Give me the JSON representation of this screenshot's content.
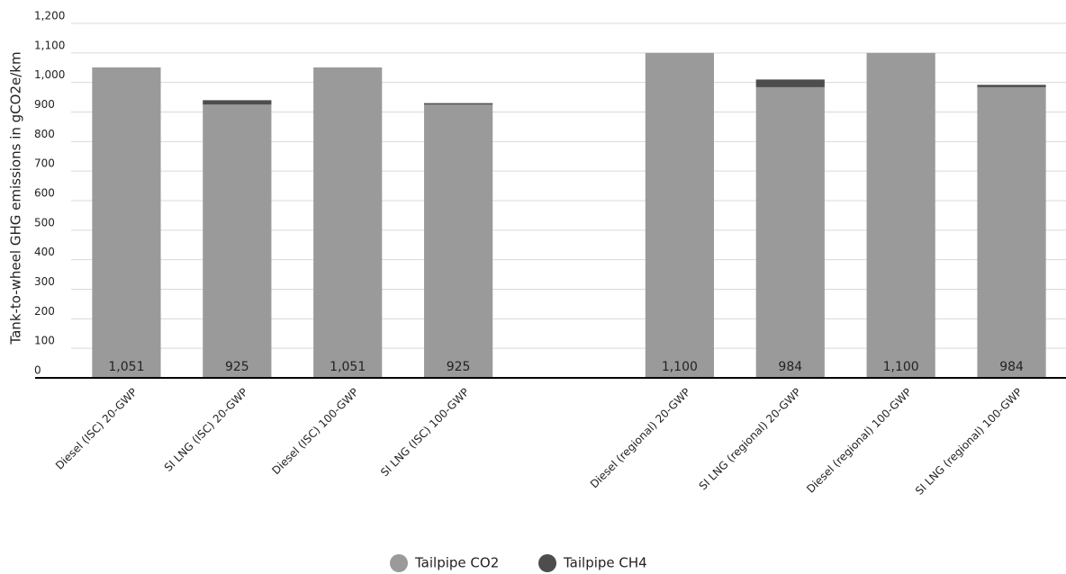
{
  "chart_data": {
    "type": "stacked-bar",
    "y_label": "Tank-to-wheel GHG emissions in gCO2e/km",
    "categories": [
      "Diesel (ISC) 20-GWP",
      "SI LNG (ISC) 20-GWP",
      "Diesel (ISC) 100-GWP",
      "SI LNG (ISC) 100-GWP",
      null,
      "Diesel (regional) 20-GWP",
      "SI LNG (regional) 20-GWP",
      "Diesel (regional) 100-GWP",
      "SI LNG (regional) 100-GWP"
    ],
    "series": [
      {
        "name": "Tailpipe CO2",
        "color": "#9a9a9a",
        "values": [
          1051,
          925,
          1051,
          925,
          null,
          1100,
          984,
          1100,
          984
        ],
        "value_labels": [
          "1,051",
          "925",
          "1,051",
          "925",
          null,
          "1,100",
          "984",
          "1,100",
          "984"
        ]
      },
      {
        "name": "Tailpipe CH4",
        "color": "#4d4d4d",
        "values": [
          0,
          15,
          0,
          5,
          null,
          0,
          26,
          0,
          8
        ]
      }
    ],
    "ylim": [
      0,
      1200
    ],
    "yticks": [
      0,
      100,
      200,
      300,
      400,
      500,
      600,
      700,
      800,
      900,
      {
        "value": 1000,
        "label": "1,000"
      },
      {
        "value": 1100,
        "label": "1,100"
      },
      {
        "value": 1200,
        "label": "1,200"
      }
    ],
    "grid": true,
    "legend": "bottom"
  }
}
